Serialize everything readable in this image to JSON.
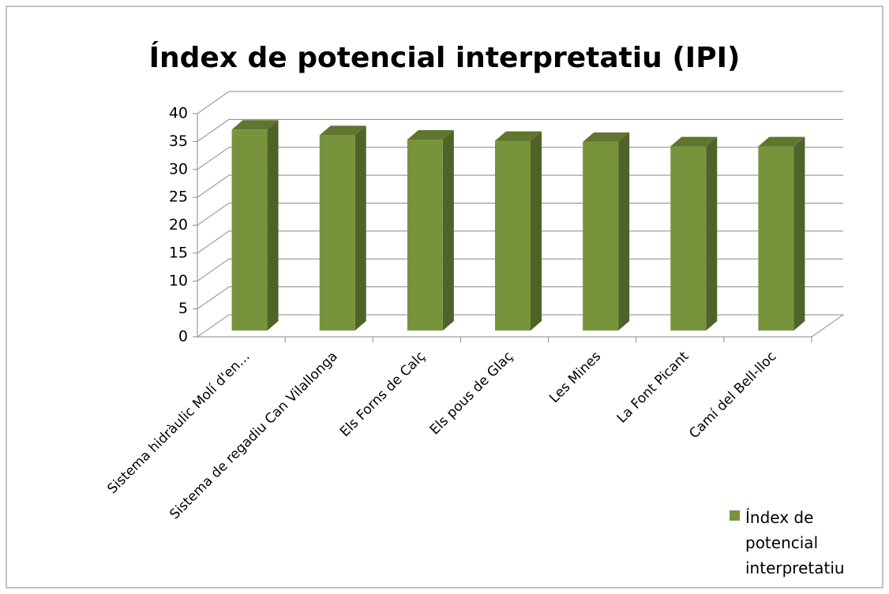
{
  "chart_data": {
    "type": "bar",
    "title": "Índex de potencial interpretatiu (IPI)",
    "categories": [
      "Sistema hidràulic Molí d'en…",
      "Sistema de regadiu Can Vilallonga",
      "Els Forns de Calç",
      "Els pous de Glaç",
      "Les Mines",
      "La Font Picant",
      "Camí del Bell-lloc"
    ],
    "series": [
      {
        "name": "Índex de potencial interpretatiu",
        "color": "#77933c",
        "values": [
          36,
          35,
          34.2,
          34,
          33.8,
          33,
          33
        ]
      }
    ],
    "ylim": [
      0,
      40
    ],
    "yticks": [
      0,
      5,
      10,
      15,
      20,
      25,
      30,
      35,
      40
    ],
    "grid": true,
    "legend": "right"
  }
}
